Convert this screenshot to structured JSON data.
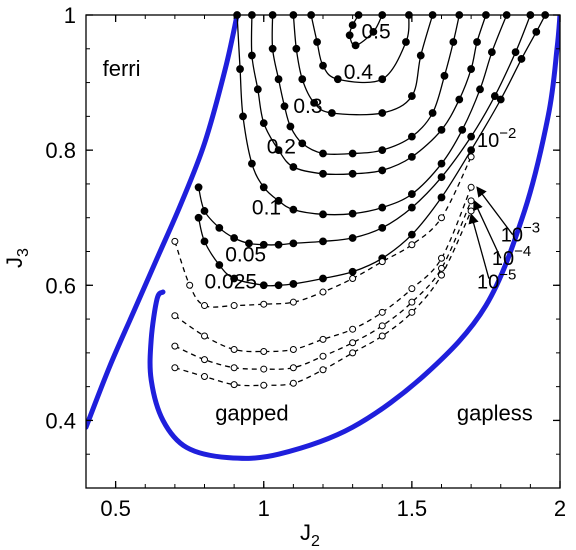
{
  "chart_data": {
    "type": "line",
    "xlabel": "J",
    "xlabel_sub": "2",
    "ylabel": "J",
    "ylabel_sub": "3",
    "xlim": [
      0.4,
      2.0
    ],
    "ylim": [
      0.3,
      1.0
    ],
    "xticks": [
      0.5,
      1.0,
      1.5,
      2.0
    ],
    "xtick_labels": [
      "0.5",
      "1",
      "1.5",
      "2"
    ],
    "yticks": [
      0.4,
      0.6,
      0.8,
      1.0
    ],
    "ytick_labels": [
      "0.4",
      "0.6",
      "0.8",
      "1"
    ],
    "grid": false,
    "region_labels": [
      {
        "text": "ferri",
        "x": 0.52,
        "y": 0.91
      },
      {
        "text": "gapped",
        "x": 0.96,
        "y": 0.4
      },
      {
        "text": "gapless",
        "x": 1.78,
        "y": 0.4
      }
    ],
    "boundaries": [
      {
        "name": "ferri boundary",
        "color": "#1f1fdc",
        "x": [
          0.4,
          0.48,
          0.56,
          0.64,
          0.72,
          0.8,
          0.87,
          0.91
        ],
        "y": [
          0.39,
          0.48,
          0.56,
          0.64,
          0.72,
          0.81,
          0.92,
          1.0
        ]
      },
      {
        "name": "gapless boundary",
        "color": "#1f1fdc",
        "x": [
          0.66,
          0.64,
          0.62,
          0.62,
          0.66,
          0.74,
          0.88,
          1.05,
          1.3,
          1.55,
          1.75,
          1.88,
          1.96,
          1.99,
          2.0
        ],
        "y": [
          0.59,
          0.58,
          0.52,
          0.46,
          0.4,
          0.36,
          0.345,
          0.35,
          0.39,
          0.47,
          0.57,
          0.71,
          0.85,
          0.95,
          1.0
        ]
      }
    ],
    "series": [
      {
        "name": "0.5",
        "style": "solid",
        "marker": "filled",
        "x": [
          1.32,
          1.3,
          1.29,
          1.31,
          1.37,
          1.4
        ],
        "y": [
          1.0,
          0.985,
          0.97,
          0.955,
          0.975,
          1.0
        ]
      },
      {
        "name": "0.4",
        "style": "solid",
        "marker": "filled",
        "x": [
          1.16,
          1.18,
          1.2,
          1.25,
          1.4,
          1.48,
          1.49
        ],
        "y": [
          1.0,
          0.96,
          0.925,
          0.905,
          0.905,
          0.96,
          1.0
        ]
      },
      {
        "name": "0.3",
        "style": "solid",
        "marker": "filled",
        "x": [
          1.1,
          1.11,
          1.13,
          1.17,
          1.23,
          1.4,
          1.5,
          1.53,
          1.57
        ],
        "y": [
          1.0,
          0.95,
          0.905,
          0.87,
          0.855,
          0.855,
          0.88,
          0.94,
          1.0
        ]
      },
      {
        "name": "0.2",
        "style": "solid",
        "marker": "filled",
        "x": [
          1.03,
          1.03,
          1.05,
          1.07,
          1.09,
          1.13,
          1.2,
          1.3,
          1.4,
          1.5,
          1.57,
          1.61,
          1.64,
          1.66
        ],
        "y": [
          1.0,
          0.95,
          0.905,
          0.865,
          0.835,
          0.81,
          0.795,
          0.795,
          0.8,
          0.82,
          0.855,
          0.91,
          0.96,
          1.0
        ]
      },
      {
        "name": "0.2b",
        "style": "solid",
        "marker": "filled",
        "x": [
          0.96,
          0.96,
          0.98,
          1.0,
          1.05,
          1.1,
          1.2,
          1.3,
          1.4,
          1.5,
          1.6,
          1.66,
          1.7,
          1.72,
          1.75
        ],
        "y": [
          1.0,
          0.94,
          0.89,
          0.84,
          0.8,
          0.775,
          0.765,
          0.765,
          0.77,
          0.79,
          0.83,
          0.875,
          0.92,
          0.96,
          1.0
        ]
      },
      {
        "name": "0.1",
        "style": "solid",
        "marker": "filled",
        "x": [
          0.91,
          0.92,
          0.93,
          0.96,
          1.0,
          1.05,
          1.1,
          1.2,
          1.3,
          1.4,
          1.5,
          1.6,
          1.67,
          1.73,
          1.77,
          1.82
        ],
        "y": [
          1.0,
          0.92,
          0.85,
          0.78,
          0.745,
          0.725,
          0.712,
          0.705,
          0.706,
          0.715,
          0.735,
          0.78,
          0.83,
          0.89,
          0.945,
          1.0
        ]
      },
      {
        "name": "0.05",
        "style": "solid",
        "marker": "filled",
        "x": [
          0.78,
          0.8,
          0.85,
          0.9,
          0.95,
          1.0,
          1.05,
          1.1,
          1.2,
          1.3,
          1.4,
          1.5,
          1.6,
          1.7,
          1.78,
          1.85,
          1.9
        ],
        "y": [
          0.745,
          0.71,
          0.685,
          0.67,
          0.662,
          0.66,
          0.66,
          0.662,
          0.665,
          0.67,
          0.685,
          0.715,
          0.76,
          0.82,
          0.88,
          0.945,
          1.0
        ]
      },
      {
        "name": "0.025",
        "style": "solid",
        "marker": "filled",
        "x": [
          0.78,
          0.8,
          0.85,
          0.9,
          1.0,
          1.05,
          1.1,
          1.2,
          1.3,
          1.4,
          1.5,
          1.6,
          1.7,
          1.8,
          1.87,
          1.92,
          1.95
        ],
        "y": [
          0.7,
          0.665,
          0.63,
          0.61,
          0.6,
          0.6,
          0.602,
          0.61,
          0.62,
          0.64,
          0.675,
          0.73,
          0.8,
          0.875,
          0.935,
          0.975,
          1.0
        ]
      },
      {
        "name": "1e-2",
        "style": "dashed",
        "marker": "open",
        "x": [
          0.7,
          0.75,
          0.8,
          0.9,
          1.0,
          1.1,
          1.2,
          1.3,
          1.4,
          1.5,
          1.6,
          1.7
        ],
        "y": [
          0.665,
          0.6,
          0.57,
          0.57,
          0.572,
          0.575,
          0.59,
          0.61,
          0.635,
          0.66,
          0.7,
          0.79
        ]
      },
      {
        "name": "1e-3",
        "style": "dashed",
        "marker": "open",
        "x": [
          0.7,
          0.8,
          0.9,
          1.0,
          1.1,
          1.2,
          1.3,
          1.4,
          1.5,
          1.6,
          1.7
        ],
        "y": [
          0.555,
          0.525,
          0.505,
          0.502,
          0.505,
          0.52,
          0.535,
          0.56,
          0.595,
          0.64,
          0.745
        ]
      },
      {
        "name": "1e-4",
        "style": "dashed",
        "marker": "open",
        "x": [
          0.7,
          0.8,
          0.9,
          1.0,
          1.1,
          1.2,
          1.3,
          1.4,
          1.5,
          1.6,
          1.7
        ],
        "y": [
          0.51,
          0.49,
          0.478,
          0.476,
          0.478,
          0.495,
          0.515,
          0.54,
          0.575,
          0.625,
          0.725
        ]
      },
      {
        "name": "1e-5",
        "style": "dashed",
        "marker": "open",
        "x": [
          0.7,
          0.8,
          0.9,
          1.0,
          1.1,
          1.2,
          1.3,
          1.4,
          1.5,
          1.6,
          1.7
        ],
        "y": [
          0.478,
          0.465,
          0.453,
          0.452,
          0.455,
          0.475,
          0.5,
          0.525,
          0.56,
          0.615,
          0.71
        ]
      }
    ],
    "contour_labels": [
      {
        "text": "0.5",
        "x": 1.33,
        "y": 0.965
      },
      {
        "text": "0.4",
        "x": 1.27,
        "y": 0.905
      },
      {
        "text": "0.3",
        "x": 1.1,
        "y": 0.855
      },
      {
        "text": "0.2",
        "x": 1.01,
        "y": 0.795
      },
      {
        "text": "0.1",
        "x": 0.96,
        "y": 0.705
      },
      {
        "text": "0.05",
        "x": 0.87,
        "y": 0.635
      },
      {
        "text": "0.025",
        "x": 0.8,
        "y": 0.595
      }
    ],
    "annotations": [
      {
        "base": "10",
        "exp": "−2",
        "x": 1.72,
        "y": 0.805
      },
      {
        "base": "10",
        "exp": "−3",
        "x": 1.8,
        "y": 0.665
      },
      {
        "base": "10",
        "exp": "−4",
        "x": 1.77,
        "y": 0.63
      },
      {
        "base": "10",
        "exp": "−5",
        "x": 1.72,
        "y": 0.595
      }
    ],
    "arrows": [
      {
        "from": [
          1.84,
          0.675
        ],
        "to": [
          1.72,
          0.745
        ]
      },
      {
        "from": [
          1.8,
          0.64
        ],
        "to": [
          1.71,
          0.725
        ]
      },
      {
        "from": [
          1.76,
          0.61
        ],
        "to": [
          1.7,
          0.705
        ]
      }
    ]
  }
}
